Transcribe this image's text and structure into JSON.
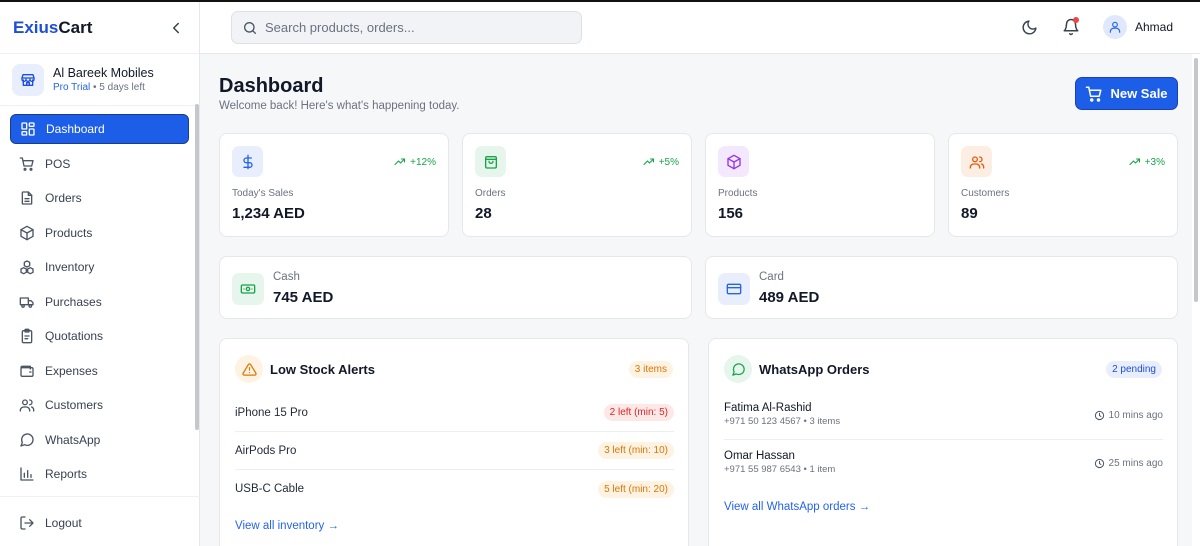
{
  "sidebar": {
    "brand_part1": "Exius",
    "brand_part2": "Cart",
    "store_name": "Al Bareek Mobiles",
    "plan": "Pro Trial",
    "trial_left": "• 5 days left",
    "items": [
      {
        "label": "Dashboard",
        "icon": "dashboard-grid-icon",
        "active": true
      },
      {
        "label": "POS",
        "icon": "cart-icon"
      },
      {
        "label": "Orders",
        "icon": "document-icon"
      },
      {
        "label": "Products",
        "icon": "box-icon"
      },
      {
        "label": "Inventory",
        "icon": "boxes-icon"
      },
      {
        "label": "Purchases",
        "icon": "truck-icon"
      },
      {
        "label": "Quotations",
        "icon": "clipboard-icon"
      },
      {
        "label": "Expenses",
        "icon": "wallet-icon"
      },
      {
        "label": "Customers",
        "icon": "users-icon"
      },
      {
        "label": "WhatsApp",
        "icon": "chat-bubble-icon"
      },
      {
        "label": "Reports",
        "icon": "bar-chart-icon"
      }
    ],
    "logout": "Logout"
  },
  "header": {
    "search_placeholder": "Search products, orders...",
    "user_name": "Ahmad"
  },
  "main": {
    "title": "Dashboard",
    "subtitle": "Welcome back! Here's what's happening today.",
    "new_sale": "New Sale",
    "stats": [
      {
        "label": "Today's Sales",
        "value": "1,234 AED",
        "trend": "+12%",
        "icon": "dollar-icon",
        "color": "#2563eb",
        "bg": "#e8eefc"
      },
      {
        "label": "Orders",
        "value": "28",
        "trend": "+5%",
        "icon": "shopping-bag-icon",
        "color": "#16a34a",
        "bg": "#e6f6ec"
      },
      {
        "label": "Products",
        "value": "156",
        "trend": "",
        "icon": "package-icon",
        "color": "#9333ea",
        "bg": "#f3e8fd"
      },
      {
        "label": "Customers",
        "value": "89",
        "trend": "+3%",
        "icon": "users-icon",
        "color": "#ea580c",
        "bg": "#fdeee3"
      }
    ],
    "payments": [
      {
        "label": "Cash",
        "value": "745 AED",
        "icon": "banknote-icon",
        "color": "#16a34a",
        "bg": "#e6f6ec"
      },
      {
        "label": "Card",
        "value": "489 AED",
        "icon": "credit-card-icon",
        "color": "#2563eb",
        "bg": "#e8eefc"
      }
    ],
    "low_stock": {
      "title": "Low Stock Alerts",
      "badge": "3 items",
      "items": [
        {
          "name": "iPhone 15 Pro",
          "status": "2 left (min: 5)",
          "level": "critical"
        },
        {
          "name": "AirPods Pro",
          "status": "3 left (min: 10)",
          "level": "warning"
        },
        {
          "name": "USB-C Cable",
          "status": "5 left (min: 20)",
          "level": "warning"
        }
      ],
      "link": "View all inventory →"
    },
    "whatsapp": {
      "title": "WhatsApp Orders",
      "badge": "2 pending",
      "orders": [
        {
          "name": "Fatima Al-Rashid",
          "meta": "+971 50 123 4567 • 3 items",
          "time": "10 mins ago"
        },
        {
          "name": "Omar Hassan",
          "meta": "+971 55 987 6543 • 1 item",
          "time": "25 mins ago"
        }
      ],
      "link": "View all WhatsApp orders →"
    }
  },
  "colors": {
    "primary": "#1d5ee8",
    "success": "#16a34a",
    "danger": "#dc2626",
    "warning": "#d97706"
  }
}
